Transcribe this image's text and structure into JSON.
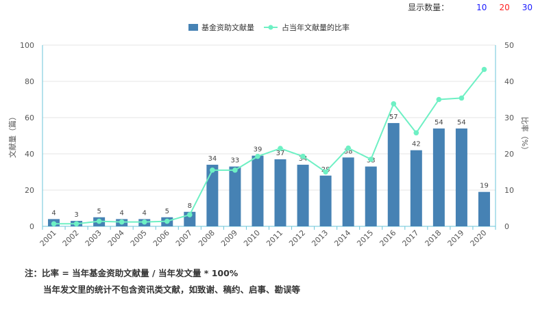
{
  "display_count": {
    "label": "显示数量：",
    "options": [
      {
        "text": "10",
        "color": "#1a1aff"
      },
      {
        "text": "20",
        "color": "#ff2020"
      },
      {
        "text": "30",
        "color": "#1a1aff"
      }
    ]
  },
  "colors": {
    "bar": "#4682b4",
    "line": "#6ef0c4",
    "axis": "#6ac4d8",
    "grid": "#e4e4e4",
    "text": "#555555"
  },
  "chart_data": {
    "type": "bar",
    "categories": [
      "2001",
      "2002",
      "2003",
      "2004",
      "2005",
      "2006",
      "2007",
      "2008",
      "2009",
      "2010",
      "2011",
      "2012",
      "2013",
      "2014",
      "2015",
      "2016",
      "2017",
      "2018",
      "2019",
      "2020"
    ],
    "series": [
      {
        "name": "基金资助文献量",
        "type": "bar",
        "axis": "left",
        "values": [
          4,
          3,
          5,
          4,
          4,
          5,
          8,
          34,
          33,
          39,
          37,
          34,
          28,
          38,
          33,
          57,
          42,
          54,
          54,
          19
        ],
        "labels": [
          "4",
          "3",
          "5",
          "4",
          "4",
          "5",
          "8",
          "34",
          "33",
          "39",
          "37",
          "34",
          "28",
          "38",
          "33",
          "57",
          "42",
          "54",
          "54",
          "19"
        ]
      },
      {
        "name": "占当年文献量的比率",
        "type": "line",
        "axis": "right",
        "values": [
          0.7,
          0.7,
          1.4,
          1.2,
          1.2,
          1.4,
          3.2,
          15.5,
          15.5,
          19.3,
          21.5,
          19.3,
          15.0,
          21.6,
          18.5,
          33.8,
          25.8,
          35.0,
          35.4,
          43.3
        ]
      }
    ],
    "ylabel": "文献量（篇）",
    "y2label": "比率（%）",
    "ylim": [
      0,
      100
    ],
    "y2lim": [
      0,
      50
    ],
    "yticks": [
      "0",
      "20",
      "40",
      "60",
      "80",
      "100"
    ],
    "y2ticks": [
      "0",
      "10",
      "20",
      "30",
      "40",
      "50"
    ],
    "grid": true,
    "legend_position": "top-center"
  },
  "notes": {
    "line1": "注：比率 = 当年基金资助文献量 / 当年发文量 * 100%",
    "line2": "当年发文里的统计不包含资讯类文献，如致谢、稿约、启事、勘误等"
  }
}
